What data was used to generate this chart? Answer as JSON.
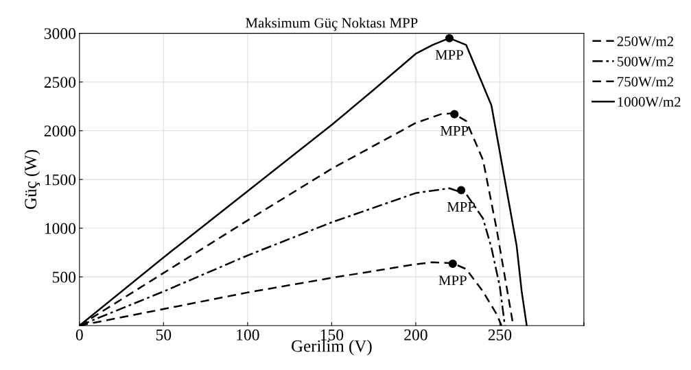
{
  "chart_data": {
    "type": "line",
    "title": "Maksimum Güç Noktası MPP",
    "xlabel": "Gerilim (V)",
    "ylabel": "Güç (W)",
    "xlim": [
      0,
      300
    ],
    "xticks": [
      0,
      50,
      100,
      150,
      200,
      250,
      {
        "value": 300,
        "label": null
      }
    ],
    "ylim": [
      0,
      3000
    ],
    "yticks": [
      {
        "value": 0,
        "label": null
      },
      500,
      1000,
      1500,
      2000,
      2500,
      3000
    ],
    "grid": true,
    "legend": "top right",
    "marker": "none",
    "series": [
      {
        "name": "250W/m2",
        "color": "#000000",
        "line_style": "dashed",
        "x": [
          0,
          50,
          100,
          150,
          200,
          210,
          222,
          230,
          240,
          248,
          251
        ],
        "values": [
          0,
          170,
          340,
          490,
          630,
          650,
          640,
          580,
          350,
          120,
          0
        ]
      },
      {
        "name": "500W/m2",
        "color": "#000000",
        "line_style": "dashdot",
        "x": [
          0,
          50,
          100,
          150,
          200,
          220,
          230,
          240,
          245,
          250,
          253
        ],
        "values": [
          0,
          350,
          720,
          1060,
          1360,
          1410,
          1350,
          1100,
          800,
          400,
          0
        ]
      },
      {
        "name": "750W/m2",
        "color": "#000000",
        "line_style": "dashed",
        "x": [
          0,
          50,
          100,
          150,
          200,
          215,
          222,
          230,
          240,
          248,
          253,
          258
        ],
        "values": [
          0,
          540,
          1080,
          1610,
          2080,
          2170,
          2180,
          2100,
          1700,
          1000,
          500,
          0
        ]
      },
      {
        "name": "1000W/m2",
        "color": "#000000",
        "line_style": "solid",
        "x": [
          0,
          50,
          100,
          150,
          175,
          200,
          210,
          220,
          230,
          245,
          255,
          260,
          263,
          266
        ],
        "values": [
          0,
          700,
          1380,
          2060,
          2420,
          2790,
          2880,
          2950,
          2880,
          2260,
          1300,
          820,
          350,
          0
        ]
      },
      {
        "type": "scatter",
        "color": "#000000",
        "marker": "circle",
        "x": [
          220,
          223,
          227,
          222
        ],
        "values": [
          2950,
          2170,
          1390,
          635
        ]
      }
    ],
    "annotations": [
      {
        "text": "MPP",
        "x": 220,
        "y": 2950
      },
      {
        "text": "MPP",
        "x": 223,
        "y": 2170
      },
      {
        "text": "MPP",
        "x": 227,
        "y": 1390
      },
      {
        "text": "MPP",
        "x": 222,
        "y": 635
      }
    ]
  }
}
